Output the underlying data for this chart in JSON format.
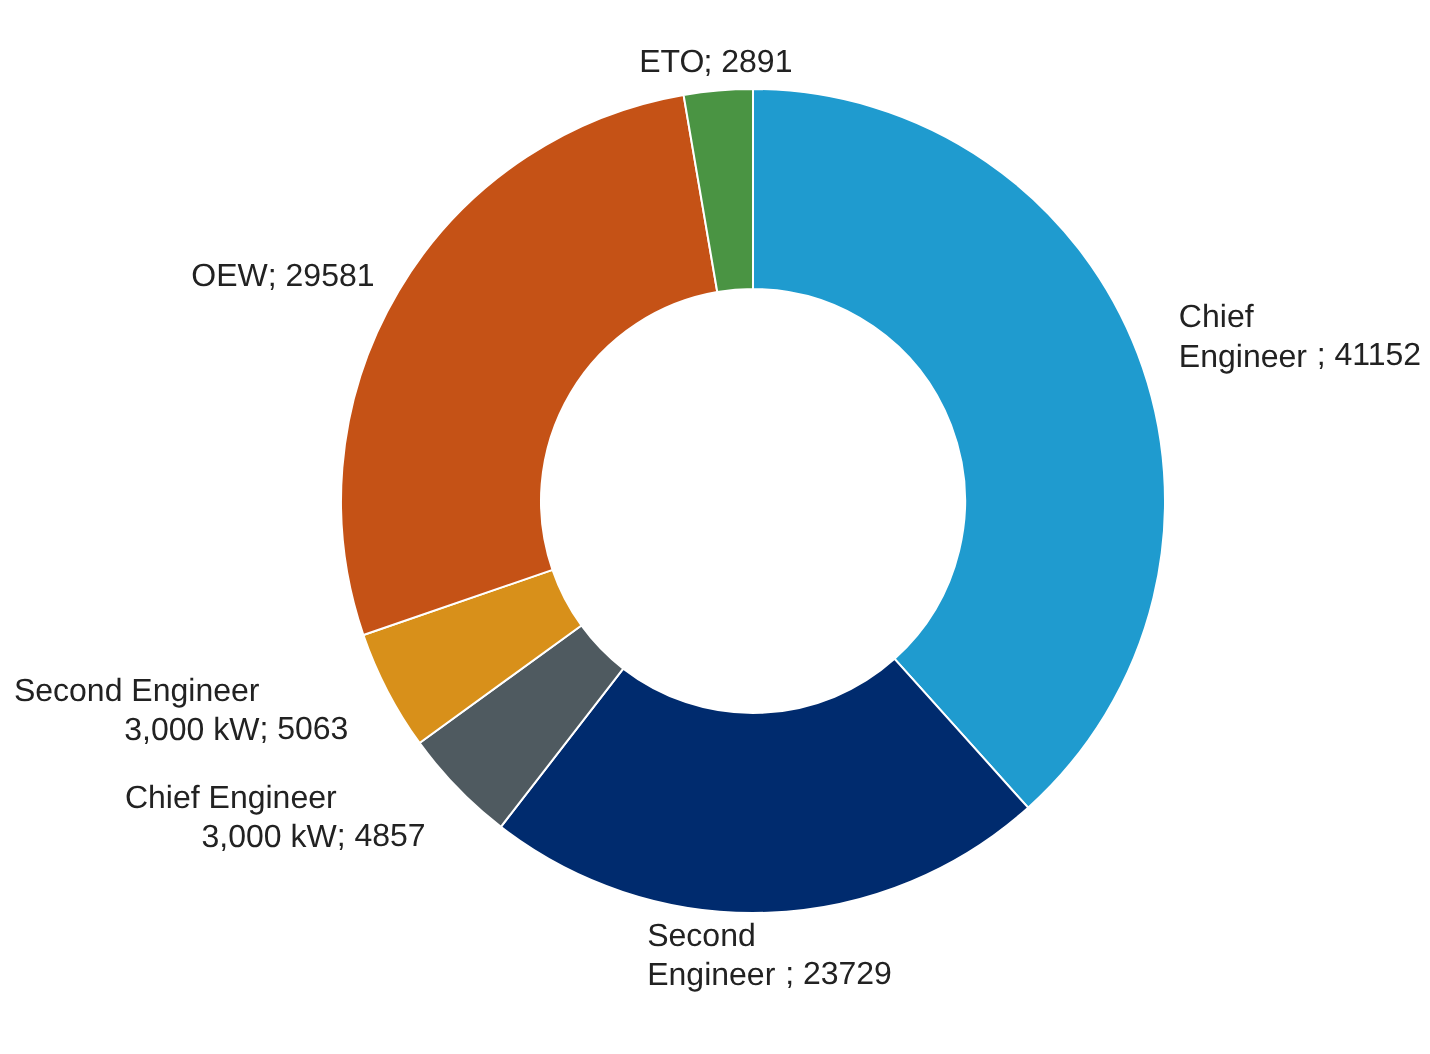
{
  "chart_data": {
    "type": "donut",
    "categories": [
      "Chief Engineer",
      "Second Engineer",
      "Chief Engineer 3,000 kW",
      "Second Engineer 3,000 kW",
      "OEW",
      "ETO"
    ],
    "values": [
      41152,
      23729,
      4857,
      5063,
      29581,
      2891
    ],
    "colors": [
      "#1f9bcf",
      "#002b6e",
      "#4f5a60",
      "#d8901a",
      "#c55216",
      "#4a9443"
    ],
    "value_labels": [
      "; 41152",
      "; 23729",
      "; 4857",
      "; 5063",
      "; 29581",
      "; 2891"
    ],
    "legend": false
  }
}
